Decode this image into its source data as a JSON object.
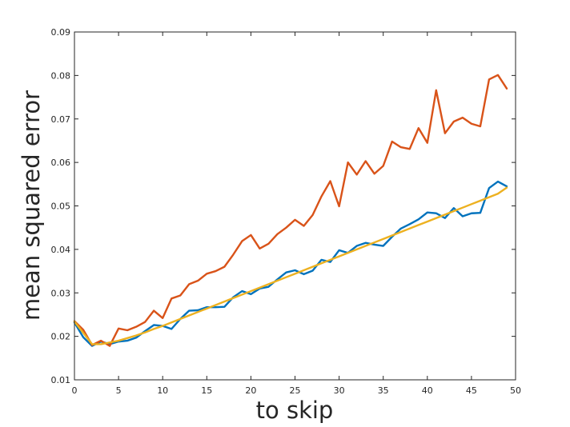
{
  "chart_data": {
    "type": "line",
    "title": "",
    "xlabel": "to skip",
    "ylabel": "mean squared error",
    "xlim": [
      0,
      50
    ],
    "ylim": [
      0.01,
      0.09
    ],
    "xticks": [
      0,
      5,
      10,
      15,
      20,
      25,
      30,
      35,
      40,
      45,
      50
    ],
    "yticks": [
      0.01,
      0.02,
      0.03,
      0.04,
      0.05,
      0.06,
      0.07,
      0.08,
      0.09
    ],
    "xtick_labels": [
      "0",
      "5",
      "10",
      "15",
      "20",
      "25",
      "30",
      "35",
      "40",
      "45",
      "50"
    ],
    "ytick_labels": [
      "0.01",
      "0.02",
      "0.03",
      "0.04",
      "0.05",
      "0.06",
      "0.07",
      "0.08",
      "0.09"
    ],
    "grid": false,
    "legend": "none",
    "x": [
      0,
      1,
      2,
      3,
      4,
      5,
      6,
      7,
      8,
      9,
      10,
      11,
      12,
      13,
      14,
      15,
      16,
      17,
      18,
      19,
      20,
      21,
      22,
      23,
      24,
      25,
      26,
      27,
      28,
      29,
      30,
      31,
      32,
      33,
      34,
      35,
      36,
      37,
      38,
      39,
      40,
      41,
      42,
      43,
      44,
      45,
      46,
      47,
      48,
      49
    ],
    "series": [
      {
        "color": "#0072BD",
        "values": [
          0.0232,
          0.0198,
          0.0178,
          0.0188,
          0.0182,
          0.0188,
          0.019,
          0.0197,
          0.0212,
          0.0226,
          0.0224,
          0.0217,
          0.024,
          0.0259,
          0.026,
          0.0267,
          0.0267,
          0.0268,
          0.029,
          0.0304,
          0.0297,
          0.031,
          0.0314,
          0.0331,
          0.0347,
          0.0352,
          0.0343,
          0.0351,
          0.0376,
          0.0371,
          0.0398,
          0.0392,
          0.0408,
          0.0415,
          0.0411,
          0.0408,
          0.0429,
          0.0448,
          0.0458,
          0.0469,
          0.0485,
          0.0483,
          0.0472,
          0.0495,
          0.0476,
          0.0483,
          0.0484,
          0.0541,
          0.0556,
          0.0545
        ]
      },
      {
        "color": "#D95319",
        "values": [
          0.0235,
          0.0215,
          0.018,
          0.019,
          0.0178,
          0.0218,
          0.0214,
          0.0222,
          0.0233,
          0.0259,
          0.0242,
          0.0287,
          0.0294,
          0.032,
          0.0328,
          0.0344,
          0.035,
          0.036,
          0.0388,
          0.0419,
          0.0433,
          0.0402,
          0.0413,
          0.0435,
          0.045,
          0.0468,
          0.0454,
          0.0479,
          0.0522,
          0.0557,
          0.0499,
          0.06,
          0.0572,
          0.0603,
          0.0574,
          0.0592,
          0.0648,
          0.0635,
          0.0631,
          0.0679,
          0.0645,
          0.0766,
          0.0667,
          0.0694,
          0.0703,
          0.0689,
          0.0683,
          0.0791,
          0.0801,
          0.077
        ]
      },
      {
        "color": "#EDB120",
        "values": [
          0.0234,
          0.0208,
          0.0182,
          0.0182,
          0.0186,
          0.019,
          0.0196,
          0.0202,
          0.0209,
          0.0217,
          0.0224,
          0.0232,
          0.024,
          0.0248,
          0.0256,
          0.0264,
          0.0272,
          0.028,
          0.0288,
          0.0296,
          0.0304,
          0.0312,
          0.032,
          0.0328,
          0.0336,
          0.0344,
          0.0352,
          0.036,
          0.0368,
          0.0376,
          0.0384,
          0.0392,
          0.04,
          0.0408,
          0.0416,
          0.0424,
          0.0432,
          0.044,
          0.0448,
          0.0456,
          0.0464,
          0.0472,
          0.048,
          0.0488,
          0.0496,
          0.0504,
          0.0512,
          0.052,
          0.0528,
          0.0542
        ]
      }
    ]
  }
}
